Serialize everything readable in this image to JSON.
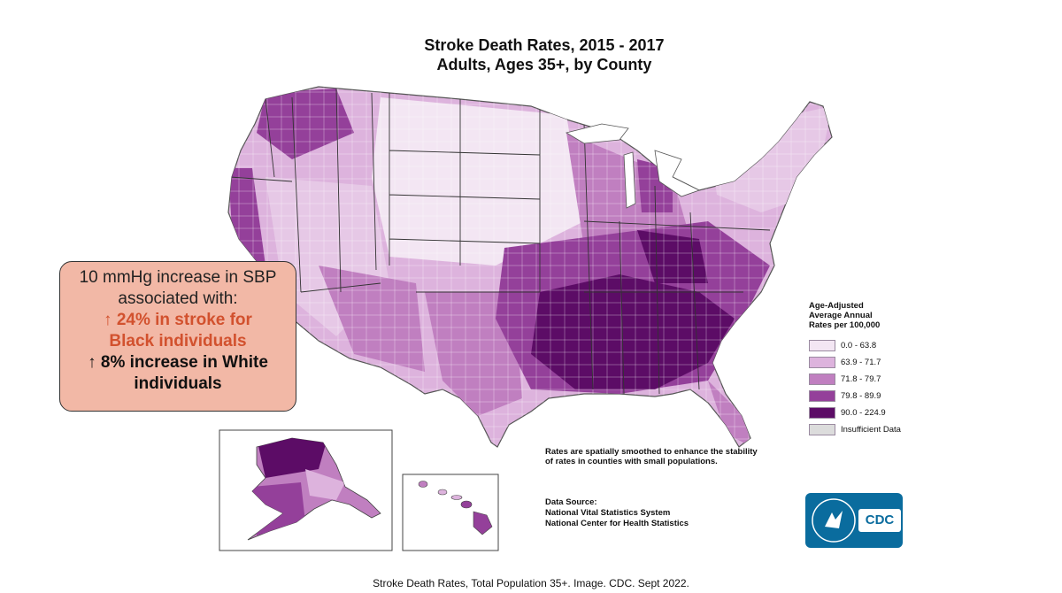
{
  "map": {
    "title_line1": "Stroke Death Rates, 2015 - 2017",
    "title_line2": "Adults, Ages 35+, by County"
  },
  "legend": {
    "title_line1": "Age-Adjusted",
    "title_line2": "Average Annual",
    "title_line3": "Rates per 100,000",
    "classes": [
      {
        "label": "0.0 - 63.8",
        "color": "#f3e6f3"
      },
      {
        "label": "63.9 - 71.7",
        "color": "#ddb3dd"
      },
      {
        "label": "71.8 - 79.7",
        "color": "#c07fc0"
      },
      {
        "label": "79.8 - 89.9",
        "color": "#94409a"
      },
      {
        "label": "90.0 - 224.9",
        "color": "#5c0c66"
      },
      {
        "label": "Insufficient Data",
        "color": "#dcdcdc"
      }
    ]
  },
  "note": "Rates are spatially smoothed to enhance the stability of rates in counties with small populations.",
  "source": {
    "heading": "Data Source:",
    "line1": "National Vital Statistics System",
    "line2": "National Center for Health Statistics"
  },
  "logo": {
    "text": "CDC"
  },
  "callout": {
    "line1": "10 mmHg increase in SBP",
    "line2": "associated with:",
    "line3": "↑ 24% in stroke for",
    "line4": "Black individuals",
    "line5": "↑ 8% increase in White",
    "line6": "individuals"
  },
  "caption": "Stroke Death Rates, Total Population 35+. Image. CDC. Sept 2022."
}
